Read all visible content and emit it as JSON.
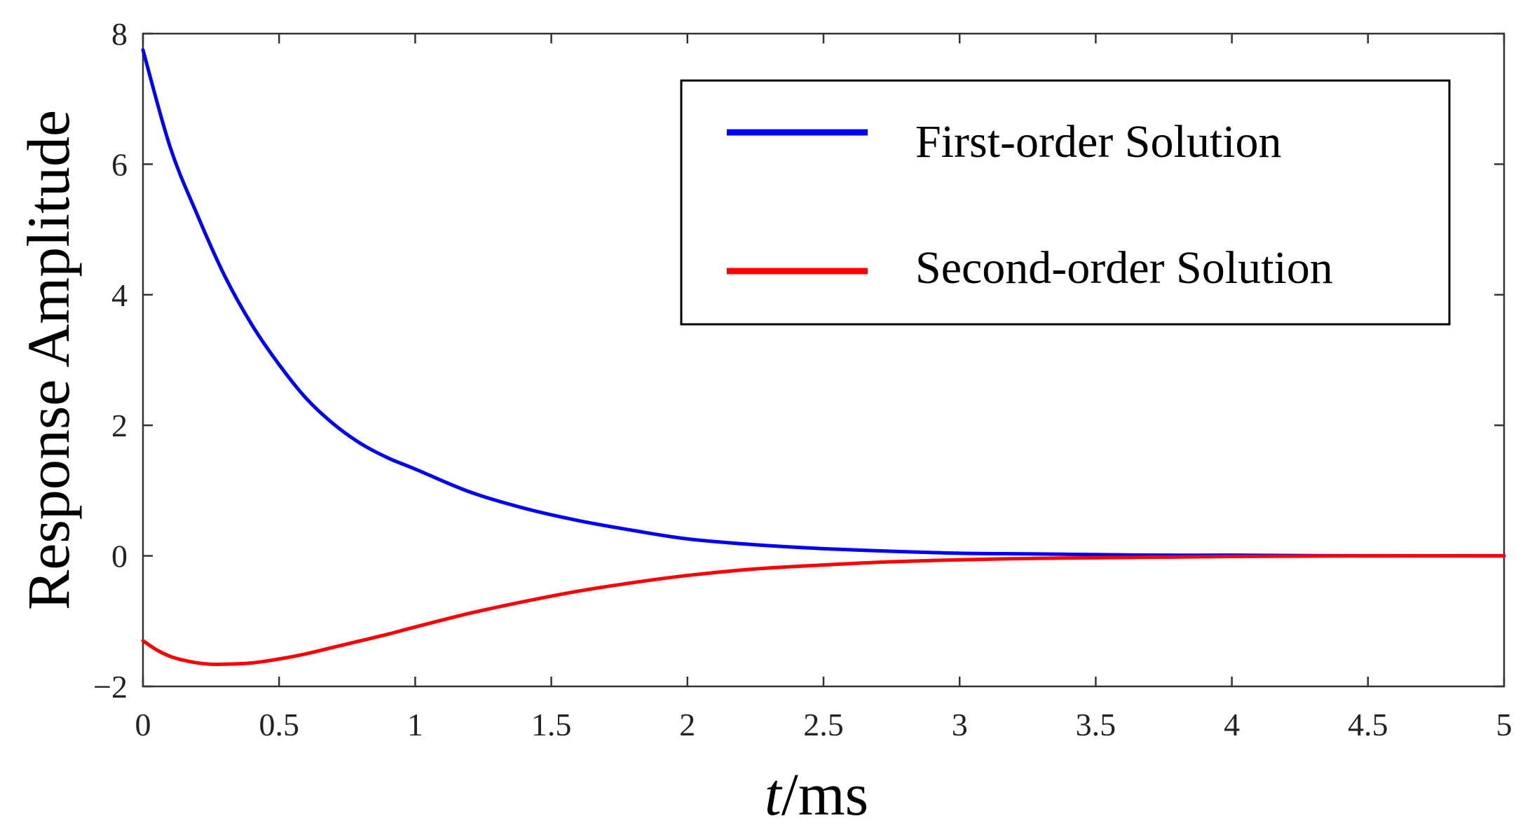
{
  "chart_data": {
    "type": "line",
    "xlabel_italic": "t",
    "xlabel_rest": "/ms",
    "ylabel": "Response Amplitude",
    "xlim": [
      0,
      5
    ],
    "ylim": [
      -2,
      8
    ],
    "xticks": [
      0,
      0.5,
      1,
      1.5,
      2,
      2.5,
      3,
      3.5,
      4,
      4.5,
      5
    ],
    "xtick_labels": [
      "0",
      "0.5",
      "1",
      "1.5",
      "2",
      "2.5",
      "3",
      "3.5",
      "4",
      "4.5",
      "5"
    ],
    "yticks": [
      -2,
      0,
      2,
      4,
      6,
      8
    ],
    "ytick_labels": [
      "−2",
      "0",
      "2",
      "4",
      "6",
      "8"
    ],
    "grid": false,
    "legend_position": "top-right",
    "series": [
      {
        "name": "First-order Solution",
        "color": "#0000ff",
        "x": [
          0,
          0.1,
          0.2,
          0.3,
          0.4,
          0.5,
          0.6,
          0.7,
          0.8,
          0.9,
          1.0,
          1.2,
          1.4,
          1.6,
          1.8,
          2.0,
          2.25,
          2.5,
          2.75,
          3.0,
          3.25,
          3.5,
          3.75,
          4.0,
          4.5,
          5.0
        ],
        "y": [
          7.75,
          6.26,
          5.22,
          4.29,
          3.54,
          2.93,
          2.41,
          2.02,
          1.72,
          1.5,
          1.33,
          0.98,
          0.73,
          0.54,
          0.39,
          0.26,
          0.17,
          0.11,
          0.07,
          0.04,
          0.03,
          0.02,
          0.01,
          0.01,
          0.0,
          0.0
        ]
      },
      {
        "name": "Second-order Solution",
        "color": "#ff0000",
        "x": [
          0,
          0.05,
          0.1,
          0.15,
          0.2,
          0.25,
          0.3,
          0.4,
          0.5,
          0.6,
          0.7,
          0.8,
          0.9,
          1.0,
          1.2,
          1.4,
          1.6,
          1.8,
          2.0,
          2.25,
          2.5,
          2.75,
          3.0,
          3.25,
          3.5,
          3.75,
          4.0,
          4.5,
          5.0
        ],
        "y": [
          -1.3,
          -1.44,
          -1.54,
          -1.6,
          -1.64,
          -1.66,
          -1.66,
          -1.64,
          -1.58,
          -1.5,
          -1.4,
          -1.3,
          -1.2,
          -1.09,
          -0.88,
          -0.7,
          -0.54,
          -0.41,
          -0.3,
          -0.2,
          -0.14,
          -0.09,
          -0.06,
          -0.04,
          -0.03,
          -0.02,
          -0.01,
          0.0,
          0.0
        ]
      }
    ]
  }
}
